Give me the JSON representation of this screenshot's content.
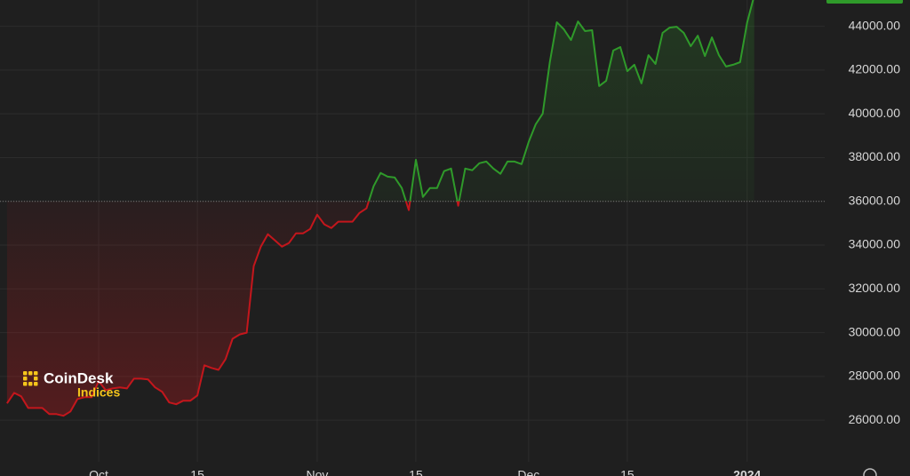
{
  "chart_data": {
    "type": "line",
    "logo": {
      "name": "CoinDesk",
      "sub": "Indices"
    },
    "x": [
      "2023-09-18",
      "2023-09-19",
      "2023-09-20",
      "2023-09-21",
      "2023-09-22",
      "2023-09-23",
      "2023-09-24",
      "2023-09-25",
      "2023-09-26",
      "2023-09-27",
      "2023-09-28",
      "2023-09-29",
      "2023-09-30",
      "2023-10-01",
      "2023-10-02",
      "2023-10-03",
      "2023-10-04",
      "2023-10-05",
      "2023-10-06",
      "2023-10-07",
      "2023-10-08",
      "2023-10-09",
      "2023-10-10",
      "2023-10-11",
      "2023-10-12",
      "2023-10-13",
      "2023-10-14",
      "2023-10-15",
      "2023-10-16",
      "2023-10-17",
      "2023-10-18",
      "2023-10-19",
      "2023-10-20",
      "2023-10-21",
      "2023-10-22",
      "2023-10-23",
      "2023-10-24",
      "2023-10-25",
      "2023-10-26",
      "2023-10-27",
      "2023-10-28",
      "2023-10-29",
      "2023-10-30",
      "2023-10-31",
      "2023-11-01",
      "2023-11-02",
      "2023-11-03",
      "2023-11-04",
      "2023-11-05",
      "2023-11-06",
      "2023-11-07",
      "2023-11-08",
      "2023-11-09",
      "2023-11-10",
      "2023-11-11",
      "2023-11-12",
      "2023-11-13",
      "2023-11-14",
      "2023-11-15",
      "2023-11-16",
      "2023-11-17",
      "2023-11-18",
      "2023-11-19",
      "2023-11-20",
      "2023-11-21",
      "2023-11-22",
      "2023-11-23",
      "2023-11-24",
      "2023-11-25",
      "2023-11-26",
      "2023-11-27",
      "2023-11-28",
      "2023-11-29",
      "2023-11-30",
      "2023-12-01",
      "2023-12-02",
      "2023-12-03",
      "2023-12-04",
      "2023-12-05",
      "2023-12-06",
      "2023-12-07",
      "2023-12-08",
      "2023-12-09",
      "2023-12-10",
      "2023-12-11",
      "2023-12-12",
      "2023-12-13",
      "2023-12-14",
      "2023-12-15",
      "2023-12-16",
      "2023-12-17",
      "2023-12-18",
      "2023-12-19",
      "2023-12-20",
      "2023-12-21",
      "2023-12-22",
      "2023-12-23",
      "2023-12-24",
      "2023-12-25",
      "2023-12-26",
      "2023-12-27",
      "2023-12-28",
      "2023-12-29",
      "2023-12-30",
      "2023-12-31",
      "2024-01-01",
      "2024-01-02"
    ],
    "values": [
      26770,
      27250,
      27090,
      26560,
      26560,
      26560,
      26280,
      26280,
      26200,
      26400,
      26970,
      27050,
      27050,
      27780,
      27370,
      27450,
      27500,
      27450,
      27900,
      27900,
      27860,
      27500,
      27300,
      26810,
      26730,
      26890,
      26890,
      27130,
      28510,
      28390,
      28300,
      28790,
      29720,
      29920,
      30000,
      33040,
      33930,
      34500,
      34220,
      33930,
      34100,
      34540,
      34540,
      34740,
      35390,
      34950,
      34780,
      35070,
      35070,
      35070,
      35470,
      35680,
      36690,
      37300,
      37130,
      37090,
      36610,
      35600,
      37900,
      36200,
      36610,
      36610,
      37380,
      37500,
      35800,
      37500,
      37420,
      37740,
      37820,
      37500,
      37260,
      37820,
      37820,
      37700,
      38710,
      39520,
      40010,
      42360,
      44180,
      43860,
      43370,
      44220,
      43780,
      43820,
      41270,
      41510,
      42890,
      43050,
      41950,
      42240,
      41390,
      42680,
      42280,
      43700,
      43940,
      43980,
      43700,
      43090,
      43570,
      42640,
      43490,
      42680,
      42160,
      42240,
      42360,
      44180,
      45400
    ],
    "baseline": 36000,
    "up_color": "#2f9a2a",
    "down_color": "#c4161c",
    "xlim": [
      "2023-09-17",
      "2024-01-12"
    ],
    "xticks": [
      {
        "value": "2023-10-01",
        "label": "Oct"
      },
      {
        "value": "2023-10-15",
        "label": "15"
      },
      {
        "value": "2023-11-01",
        "label": "Nov"
      },
      {
        "value": "2023-11-15",
        "label": "15"
      },
      {
        "value": "2023-12-01",
        "label": "Dec"
      },
      {
        "value": "2023-12-15",
        "label": "15"
      },
      {
        "value": "2024-01-01",
        "label": "2024"
      }
    ],
    "ylim": [
      24100,
      45200
    ],
    "yticks": [
      {
        "value": 26000,
        "label": "26000.00"
      },
      {
        "value": 28000,
        "label": "28000.00"
      },
      {
        "value": 30000,
        "label": "30000.00"
      },
      {
        "value": 32000,
        "label": "32000.00"
      },
      {
        "value": 34000,
        "label": "34000.00"
      },
      {
        "value": 36000,
        "label": "36000.00"
      },
      {
        "value": 38000,
        "label": "38000.00"
      },
      {
        "value": 40000,
        "label": "40000.00"
      },
      {
        "value": 42000,
        "label": "42000.00"
      },
      {
        "value": 44000,
        "label": "44000.00"
      }
    ],
    "grid": true
  }
}
